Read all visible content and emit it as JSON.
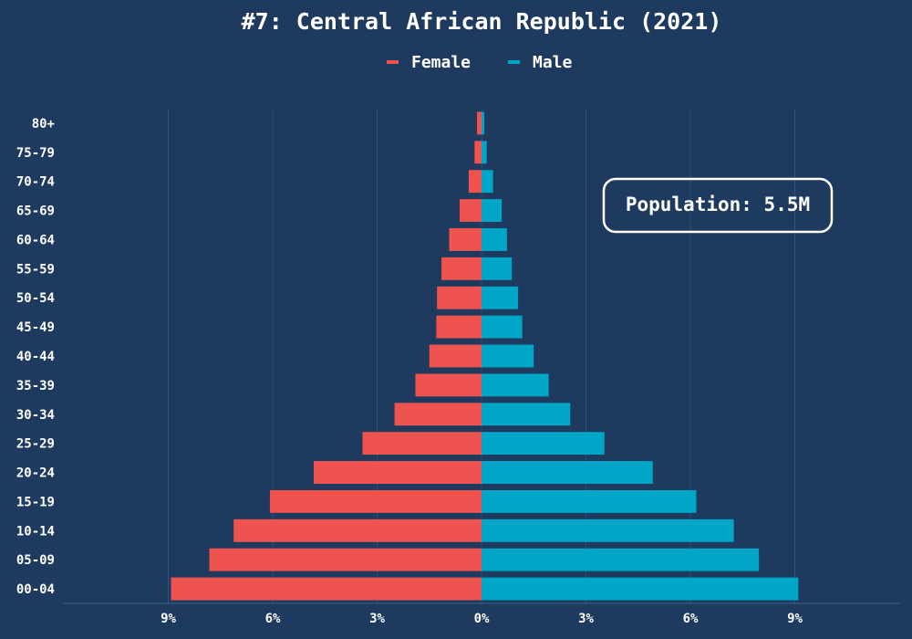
{
  "chart_data": {
    "type": "bar",
    "orientation": "horizontal",
    "title": "#7: Central African Republic (2021)",
    "categories": [
      "80+",
      "75-79",
      "70-74",
      "65-69",
      "60-64",
      "55-59",
      "50-54",
      "45-49",
      "40-44",
      "35-39",
      "30-34",
      "25-29",
      "20-24",
      "15-19",
      "10-14",
      "05-09",
      "00-04"
    ],
    "series": [
      {
        "name": "Female",
        "color": "#ef5350",
        "values": [
          0.13,
          0.2,
          0.37,
          0.63,
          0.93,
          1.15,
          1.28,
          1.3,
          1.5,
          1.9,
          2.5,
          3.42,
          4.82,
          6.08,
          7.12,
          7.82,
          8.92
        ]
      },
      {
        "name": "Male",
        "color": "#00a6c7",
        "values": [
          0.08,
          0.15,
          0.33,
          0.58,
          0.73,
          0.87,
          1.05,
          1.17,
          1.5,
          1.93,
          2.55,
          3.53,
          4.92,
          6.17,
          7.25,
          7.97,
          9.1
        ]
      }
    ],
    "x_axis": {
      "range": [
        -12,
        12
      ],
      "ticks": [
        -9,
        -6,
        -3,
        0,
        3,
        6,
        9
      ],
      "tick_labels": [
        "9%",
        "6%",
        "3%",
        "0%",
        "3%",
        "6%",
        "9%"
      ]
    },
    "grid": "vertical",
    "legend_position": "top-center",
    "annotation": "Population: 5.5M"
  }
}
